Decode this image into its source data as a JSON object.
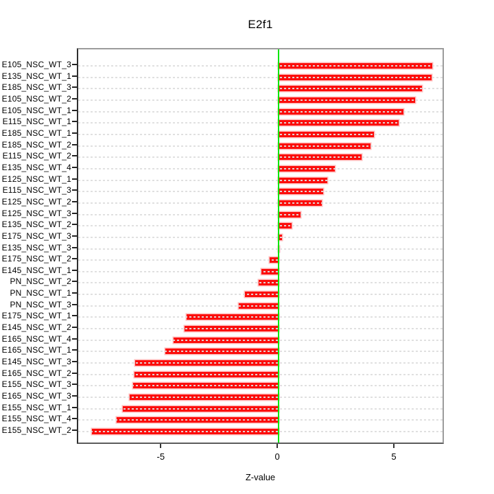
{
  "chart_data": {
    "type": "bar",
    "orientation": "horizontal",
    "title": "E2f1",
    "xlabel": "Z-value",
    "xlim": [
      -8.6,
      7.15
    ],
    "x_ticks": [
      -5,
      0,
      5
    ],
    "grid": "dashed-horizontal-per-row",
    "legend": "none",
    "bar_color": "#fc0d0b",
    "zero_line_color": "#00e504",
    "categories": [
      "E105_NSC_WT_3",
      "E135_NSC_WT_1",
      "E185_NSC_WT_3",
      "E105_NSC_WT_2",
      "E105_NSC_WT_1",
      "E115_NSC_WT_1",
      "E185_NSC_WT_1",
      "E185_NSC_WT_2",
      "E115_NSC_WT_2",
      "E135_NSC_WT_4",
      "E125_NSC_WT_1",
      "E115_NSC_WT_3",
      "E125_NSC_WT_2",
      "E125_NSC_WT_3",
      "E135_NSC_WT_2",
      "E175_NSC_WT_3",
      "E135_NSC_WT_3",
      "E175_NSC_WT_2",
      "E145_NSC_WT_1",
      "PN_NSC_WT_2",
      "PN_NSC_WT_1",
      "PN_NSC_WT_3",
      "E175_NSC_WT_1",
      "E145_NSC_WT_2",
      "E165_NSC_WT_4",
      "E165_NSC_WT_1",
      "E145_NSC_WT_3",
      "E165_NSC_WT_2",
      "E155_NSC_WT_3",
      "E165_NSC_WT_3",
      "E155_NSC_WT_1",
      "E155_NSC_WT_4",
      "E155_NSC_WT_2"
    ],
    "values": [
      6.6,
      6.55,
      6.15,
      5.85,
      5.35,
      5.15,
      4.1,
      3.95,
      3.55,
      2.4,
      2.1,
      1.9,
      1.85,
      0.95,
      0.55,
      0.15,
      0.02,
      -0.4,
      -0.75,
      -0.85,
      -1.45,
      -1.7,
      -3.95,
      -4.05,
      -4.5,
      -4.85,
      -6.15,
      -6.2,
      -6.25,
      -6.4,
      -6.7,
      -6.95,
      -8.0
    ]
  }
}
